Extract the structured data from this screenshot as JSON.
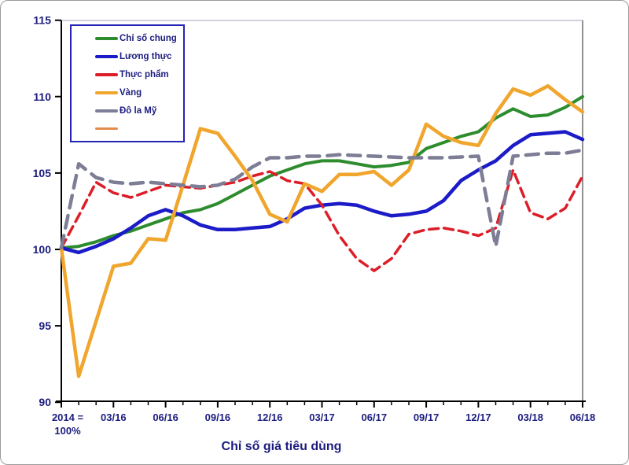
{
  "chart_data": {
    "type": "line",
    "title": "Chỉ số giá tiêu dùng",
    "x_origin_label": [
      "2014 =",
      "100%"
    ],
    "x_labels": [
      "03/16",
      "06/16",
      "09/16",
      "12/16",
      "03/17",
      "06/17",
      "09/17",
      "12/17",
      "03/18",
      "06/18"
    ],
    "points_per_series": 31,
    "months_between_labels": 3,
    "ylim": [
      90,
      115
    ],
    "yticks": [
      90,
      95,
      100,
      105,
      110,
      115
    ],
    "grid": false,
    "legend_position": "top-left",
    "axis_color": "#000000",
    "text_color": "#1c1c80",
    "series": [
      {
        "name": "Chỉ số chung",
        "color": "#2d8c2d",
        "dash": "",
        "width": 4,
        "values": [
          100.1,
          100.2,
          100.5,
          100.9,
          101.2,
          101.6,
          102.0,
          102.4,
          102.6,
          103.0,
          103.6,
          104.2,
          104.8,
          105.2,
          105.6,
          105.8,
          105.8,
          105.6,
          105.4,
          105.5,
          105.7,
          106.6,
          107.0,
          107.4,
          107.7,
          108.6,
          109.2,
          108.7,
          108.8,
          109.3,
          110.0
        ]
      },
      {
        "name": "Lương thực",
        "color": "#1b1bc8",
        "dash": "",
        "width": 4.5,
        "values": [
          100.1,
          99.8,
          100.2,
          100.7,
          101.4,
          102.2,
          102.6,
          102.2,
          101.6,
          101.3,
          101.3,
          101.4,
          101.5,
          102.0,
          102.7,
          102.9,
          103.0,
          102.9,
          102.5,
          102.2,
          102.3,
          102.5,
          103.2,
          104.5,
          105.2,
          105.8,
          106.8,
          107.5,
          107.6,
          107.7,
          107.2
        ]
      },
      {
        "name": "Thực phẩm",
        "color": "#dc1e28",
        "dash": "12 7",
        "width": 3.5,
        "values": [
          100.1,
          102.2,
          104.4,
          103.7,
          103.4,
          103.8,
          104.2,
          104.1,
          104.0,
          104.2,
          104.4,
          104.8,
          105.1,
          104.5,
          104.3,
          102.9,
          100.9,
          99.4,
          98.6,
          99.4,
          101.0,
          101.3,
          101.4,
          101.2,
          100.9,
          101.4,
          105.2,
          102.4,
          102.0,
          102.7,
          104.8
        ]
      },
      {
        "name": "Vàng",
        "color": "#f0a52d",
        "dash": "",
        "width": 4.5,
        "values": [
          100.1,
          91.7,
          95.3,
          98.9,
          99.1,
          100.7,
          100.6,
          104.2,
          107.9,
          107.6,
          106.1,
          104.5,
          102.3,
          101.8,
          104.3,
          103.8,
          104.9,
          104.9,
          105.1,
          104.2,
          105.2,
          108.2,
          107.4,
          107.0,
          106.8,
          108.9,
          110.5,
          110.1,
          110.7,
          109.8,
          109.0
        ]
      },
      {
        "name": "Đô la Mỹ",
        "color": "#7d7d96",
        "dash": "16 10",
        "width": 4.5,
        "values": [
          100.1,
          105.6,
          104.7,
          104.4,
          104.3,
          104.4,
          104.3,
          104.2,
          104.1,
          104.2,
          104.6,
          105.4,
          106.0,
          106.0,
          106.1,
          106.1,
          106.2,
          106.15,
          106.1,
          106.05,
          106.0,
          106.0,
          106.0,
          106.05,
          106.1,
          100.2,
          106.1,
          106.2,
          106.3,
          106.3,
          106.5
        ]
      },
      {
        "name": "",
        "color": "#e18c4b",
        "dash": "",
        "width": 3,
        "values": null
      }
    ]
  }
}
